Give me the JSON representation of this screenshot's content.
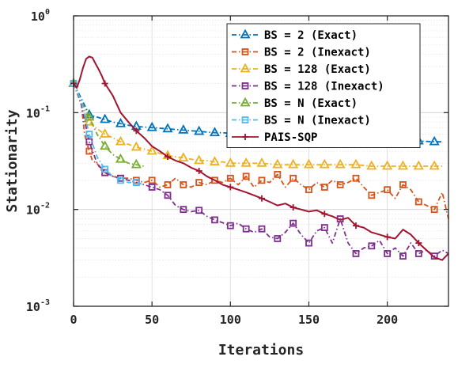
{
  "chart_data": {
    "type": "line",
    "title": "",
    "xlabel": "Iterations",
    "ylabel": "Stationarity",
    "xlim": [
      0,
      239
    ],
    "ylim": [
      0.001,
      1
    ],
    "yscale": "log",
    "grid": true,
    "legend_position": "top-right",
    "x_ticks": [
      "0",
      "50",
      "100",
      "150",
      "200"
    ],
    "y_ticks": [
      {
        "base": "10",
        "exp": "-3"
      },
      {
        "base": "10",
        "exp": "-2"
      },
      {
        "base": "10",
        "exp": "-1"
      },
      {
        "base": "10",
        "exp": "0"
      }
    ],
    "series": [
      {
        "name": "BS = 2 (Exact)",
        "color": "#0072BD",
        "dash": "dashdot",
        "marker": "triangle",
        "marker_every": 10,
        "x": [
          0,
          5,
          10,
          15,
          20,
          25,
          30,
          35,
          40,
          45,
          50,
          55,
          60,
          65,
          70,
          75,
          80,
          85,
          90,
          95,
          100,
          110,
          120,
          130,
          140,
          150,
          160,
          170,
          180,
          190,
          200,
          210,
          220,
          230,
          235
        ],
        "y": [
          0.2,
          0.14,
          0.095,
          0.09,
          0.085,
          0.08,
          0.077,
          0.074,
          0.072,
          0.071,
          0.07,
          0.069,
          0.068,
          0.067,
          0.066,
          0.065,
          0.064,
          0.063,
          0.062,
          0.062,
          0.061,
          0.06,
          0.059,
          0.058,
          0.057,
          0.056,
          0.055,
          0.054,
          0.053,
          0.052,
          0.052,
          0.051,
          0.051,
          0.05,
          0.05
        ]
      },
      {
        "name": "BS = 2 (Inexact)",
        "color": "#D95319",
        "dash": "dashdot",
        "marker": "square",
        "marker_every": 10,
        "x": [
          0,
          3,
          5,
          7,
          10,
          12,
          15,
          18,
          20,
          25,
          30,
          35,
          40,
          45,
          50,
          55,
          60,
          65,
          70,
          75,
          80,
          85,
          90,
          95,
          100,
          105,
          110,
          115,
          120,
          125,
          130,
          135,
          140,
          145,
          150,
          155,
          160,
          165,
          170,
          175,
          180,
          185,
          190,
          195,
          200,
          205,
          210,
          215,
          220,
          225,
          230,
          235,
          239
        ],
        "y": [
          0.2,
          0.16,
          0.12,
          0.06,
          0.04,
          0.032,
          0.03,
          0.025,
          0.024,
          0.022,
          0.021,
          0.021,
          0.02,
          0.019,
          0.02,
          0.017,
          0.018,
          0.021,
          0.018,
          0.017,
          0.019,
          0.018,
          0.02,
          0.019,
          0.021,
          0.018,
          0.022,
          0.017,
          0.02,
          0.019,
          0.023,
          0.017,
          0.021,
          0.018,
          0.016,
          0.019,
          0.017,
          0.02,
          0.018,
          0.019,
          0.021,
          0.017,
          0.014,
          0.015,
          0.016,
          0.013,
          0.018,
          0.016,
          0.012,
          0.011,
          0.01,
          0.015,
          0.008
        ]
      },
      {
        "name": "BS = 128 (Exact)",
        "color": "#EDB120",
        "dash": "dashdot",
        "marker": "triangle",
        "marker_every": 10,
        "x": [
          0,
          5,
          10,
          15,
          20,
          25,
          30,
          35,
          40,
          45,
          50,
          55,
          60,
          65,
          70,
          75,
          80,
          85,
          90,
          95,
          100,
          110,
          120,
          130,
          140,
          150,
          160,
          170,
          180,
          190,
          200,
          210,
          220,
          230,
          235
        ],
        "y": [
          0.2,
          0.12,
          0.08,
          0.068,
          0.06,
          0.055,
          0.05,
          0.047,
          0.044,
          0.042,
          0.04,
          0.038,
          0.036,
          0.035,
          0.034,
          0.033,
          0.032,
          0.032,
          0.031,
          0.031,
          0.03,
          0.03,
          0.03,
          0.029,
          0.029,
          0.029,
          0.029,
          0.029,
          0.029,
          0.028,
          0.028,
          0.028,
          0.028,
          0.028,
          0.028
        ]
      },
      {
        "name": "BS = 128 (Inexact)",
        "color": "#7E2F8E",
        "dash": "dashdot",
        "marker": "square",
        "marker_every": 10,
        "x": [
          0,
          3,
          5,
          8,
          10,
          15,
          20,
          25,
          30,
          35,
          40,
          45,
          50,
          55,
          60,
          65,
          70,
          75,
          80,
          85,
          90,
          95,
          100,
          105,
          110,
          115,
          120,
          125,
          130,
          135,
          140,
          145,
          150,
          155,
          160,
          165,
          170,
          175,
          180,
          185,
          190,
          195,
          200,
          205,
          210,
          215,
          220,
          225,
          230,
          235,
          239
        ],
        "y": [
          0.2,
          0.15,
          0.12,
          0.07,
          0.05,
          0.03,
          0.024,
          0.022,
          0.021,
          0.02,
          0.019,
          0.018,
          0.017,
          0.016,
          0.014,
          0.011,
          0.01,
          0.0095,
          0.0098,
          0.0085,
          0.0078,
          0.0073,
          0.0068,
          0.0072,
          0.0063,
          0.0058,
          0.0063,
          0.0052,
          0.005,
          0.0058,
          0.0072,
          0.0055,
          0.0045,
          0.006,
          0.0065,
          0.0045,
          0.008,
          0.0045,
          0.0035,
          0.004,
          0.0042,
          0.0048,
          0.0035,
          0.004,
          0.0033,
          0.0045,
          0.0035,
          0.0038,
          0.0033,
          0.0038,
          0.0035
        ]
      },
      {
        "name": "BS = N (Exact)",
        "color": "#77AC30",
        "dash": "dashdot",
        "marker": "triangle",
        "marker_every": 10,
        "x": [
          0,
          5,
          10,
          15,
          20,
          25,
          30,
          35,
          40,
          45
        ],
        "y": [
          0.2,
          0.13,
          0.09,
          0.06,
          0.045,
          0.037,
          0.033,
          0.03,
          0.029,
          0.028
        ]
      },
      {
        "name": "BS = N (Inexact)",
        "color": "#4DBEEE",
        "dash": "dashdot",
        "marker": "square",
        "marker_every": 10,
        "x": [
          0,
          5,
          10,
          15,
          20,
          25,
          30,
          35,
          40,
          45
        ],
        "y": [
          0.2,
          0.13,
          0.06,
          0.035,
          0.026,
          0.022,
          0.02,
          0.019,
          0.019,
          0.018
        ]
      },
      {
        "name": "PAIS-SQP",
        "color": "#A2142F",
        "dash": "solid",
        "marker": "plus",
        "marker_every": 20,
        "x": [
          0,
          2,
          4,
          6,
          8,
          10,
          12,
          14,
          16,
          18,
          20,
          25,
          30,
          35,
          40,
          45,
          50,
          55,
          60,
          65,
          70,
          75,
          80,
          85,
          90,
          95,
          100,
          105,
          110,
          115,
          120,
          125,
          130,
          135,
          140,
          145,
          150,
          155,
          160,
          165,
          170,
          175,
          180,
          185,
          190,
          195,
          200,
          205,
          210,
          215,
          220,
          225,
          230,
          235,
          239
        ],
        "y": [
          0.2,
          0.18,
          0.22,
          0.29,
          0.36,
          0.38,
          0.37,
          0.32,
          0.28,
          0.24,
          0.2,
          0.15,
          0.1,
          0.08,
          0.065,
          0.055,
          0.045,
          0.04,
          0.035,
          0.032,
          0.03,
          0.027,
          0.025,
          0.022,
          0.02,
          0.018,
          0.017,
          0.016,
          0.015,
          0.014,
          0.013,
          0.012,
          0.011,
          0.0115,
          0.0105,
          0.01,
          0.0095,
          0.0098,
          0.009,
          0.0085,
          0.0078,
          0.0082,
          0.0068,
          0.0065,
          0.0058,
          0.0055,
          0.0052,
          0.005,
          0.0062,
          0.0055,
          0.0045,
          0.0038,
          0.0032,
          0.003,
          0.0035
        ]
      }
    ]
  }
}
